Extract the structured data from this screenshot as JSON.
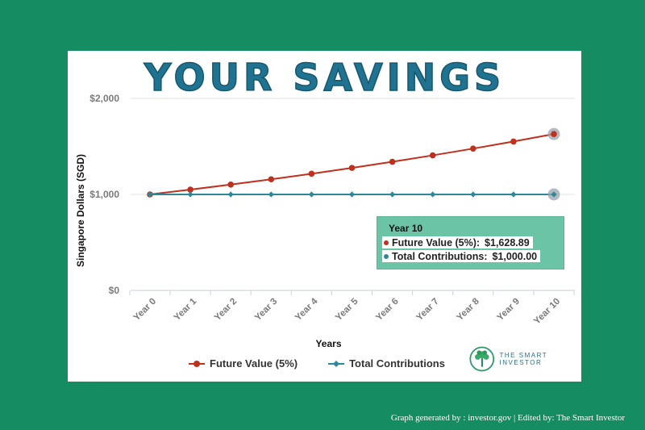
{
  "page": {
    "title": "YOUR SAVINGS",
    "credit": "Graph generated by : investor.gov | Edited by: The Smart Investor"
  },
  "colors": {
    "background": "#158c62",
    "future_value": "#c0301c",
    "total_contributions": "#2a8a9a",
    "tooltip_bg": "#6cc4a6",
    "title": "#1f7390"
  },
  "chart_data": {
    "type": "line",
    "xlabel": "Years",
    "ylabel": "Singapore Dollars (SGD)",
    "categories": [
      "Year 0",
      "Year 1",
      "Year 2",
      "Year 3",
      "Year 4",
      "Year 5",
      "Year 6",
      "Year 7",
      "Year 8",
      "Year 9",
      "Year 10"
    ],
    "y_ticks": [
      "$0",
      "$1,000",
      "$2,000"
    ],
    "ylim": [
      0,
      2000
    ],
    "grid": true,
    "legend_position": "bottom",
    "series": [
      {
        "name": "Future Value (5%)",
        "marker": "circle",
        "values": [
          1000,
          1050,
          1102.5,
          1157.63,
          1215.51,
          1276.28,
          1340.1,
          1407.1,
          1477.46,
          1551.33,
          1628.89
        ]
      },
      {
        "name": "Total Contributions",
        "marker": "diamond",
        "values": [
          1000,
          1000,
          1000,
          1000,
          1000,
          1000,
          1000,
          1000,
          1000,
          1000,
          1000
        ]
      }
    ],
    "tooltip": {
      "header": "Year 10",
      "rows": [
        {
          "label": "Future Value (5%):",
          "value": "$1,628.89"
        },
        {
          "label": "Total Contributions:",
          "value": "$1,000.00"
        }
      ]
    }
  },
  "logo": {
    "text": "THE SMART INVESTOR",
    "icon": "tree-icon"
  }
}
